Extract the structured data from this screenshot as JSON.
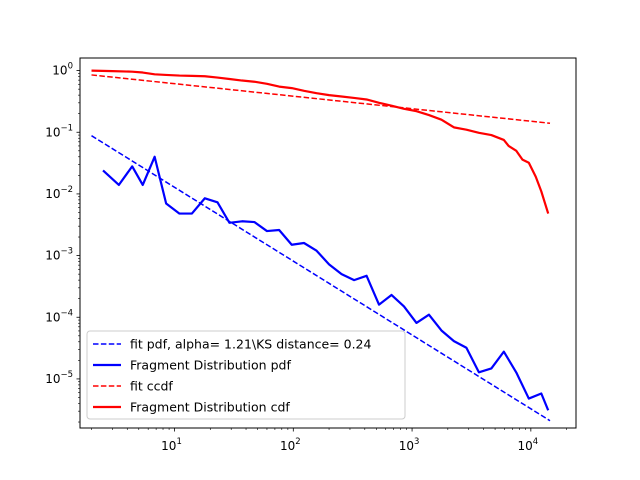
{
  "chart_data": {
    "type": "line",
    "title": "",
    "xlabel": "",
    "ylabel": "",
    "xscale": "log",
    "yscale": "log",
    "xlim": [
      1.6,
      24000
    ],
    "ylim": [
      1.6e-06,
      1.6
    ],
    "xticks": [
      {
        "value": 10,
        "base": "10",
        "exp": "1"
      },
      {
        "value": 100,
        "base": "10",
        "exp": "2"
      },
      {
        "value": 1000,
        "base": "10",
        "exp": "3"
      },
      {
        "value": 10000,
        "base": "10",
        "exp": "4"
      }
    ],
    "yticks": [
      {
        "value": 1,
        "base": "10",
        "exp": "0"
      },
      {
        "value": 0.1,
        "base": "10",
        "exp": "−1"
      },
      {
        "value": 0.01,
        "base": "10",
        "exp": "−2"
      },
      {
        "value": 0.001,
        "base": "10",
        "exp": "−3"
      },
      {
        "value": 0.0001,
        "base": "10",
        "exp": "−4"
      },
      {
        "value": 1e-05,
        "base": "10",
        "exp": "−5"
      }
    ],
    "legend_position": "lower-left",
    "grid": false,
    "series": [
      {
        "name": "fit pdf, alpha= 1.21\\KS distance= 0.24",
        "color": "#0000ff",
        "style": "dashed",
        "x": [
          2,
          14500
        ],
        "y": [
          0.088,
          2.1e-06
        ]
      },
      {
        "name": "Fragment Distribution pdf",
        "color": "#0000ff",
        "style": "solid",
        "x": [
          2.5,
          3.4,
          4.4,
          5.4,
          6.8,
          8.5,
          11,
          14,
          18,
          23,
          29,
          37,
          47,
          60,
          76,
          97,
          123,
          157,
          200,
          255,
          325,
          414,
          527,
          671,
          855,
          1089,
          1387,
          1767,
          2250,
          2867,
          3652,
          4651,
          5925,
          7547,
          9615,
          12247,
          14000
        ],
        "y": [
          0.024,
          0.014,
          0.028,
          0.014,
          0.04,
          0.007,
          0.0048,
          0.0048,
          0.0085,
          0.0073,
          0.0034,
          0.0036,
          0.0035,
          0.0025,
          0.0026,
          0.0015,
          0.0016,
          0.0012,
          0.00072,
          0.0005,
          0.0004,
          0.00047,
          0.00016,
          0.00023,
          0.00015,
          8.1e-05,
          0.00011,
          6.1e-05,
          4.1e-05,
          3.2e-05,
          1.28e-05,
          1.48e-05,
          2.77e-05,
          1.27e-05,
          4.8e-06,
          5.8e-06,
          3.1e-06
        ]
      },
      {
        "name": "fit ccdf",
        "color": "#ff0000",
        "style": "dashed",
        "x": [
          2,
          14500
        ],
        "y": [
          0.85,
          0.14
        ]
      },
      {
        "name": "Fragment Distribution cdf",
        "color": "#ff0000",
        "style": "solid",
        "x": [
          2,
          3,
          4.4,
          5.4,
          6.8,
          8.5,
          11,
          14,
          18,
          23,
          29,
          37,
          47,
          60,
          76,
          97,
          123,
          157,
          200,
          255,
          325,
          414,
          527,
          671,
          855,
          1089,
          1387,
          1767,
          2250,
          2867,
          3652,
          4651,
          5925,
          6500,
          7547,
          8500,
          9615,
          11000,
          12247,
          14000
        ],
        "y": [
          1.0,
          0.98,
          0.96,
          0.93,
          0.87,
          0.85,
          0.83,
          0.82,
          0.81,
          0.77,
          0.73,
          0.69,
          0.66,
          0.61,
          0.55,
          0.52,
          0.47,
          0.43,
          0.4,
          0.38,
          0.36,
          0.34,
          0.3,
          0.27,
          0.24,
          0.22,
          0.19,
          0.16,
          0.12,
          0.11,
          0.098,
          0.09,
          0.075,
          0.06,
          0.05,
          0.036,
          0.032,
          0.019,
          0.011,
          0.0048
        ]
      }
    ]
  }
}
